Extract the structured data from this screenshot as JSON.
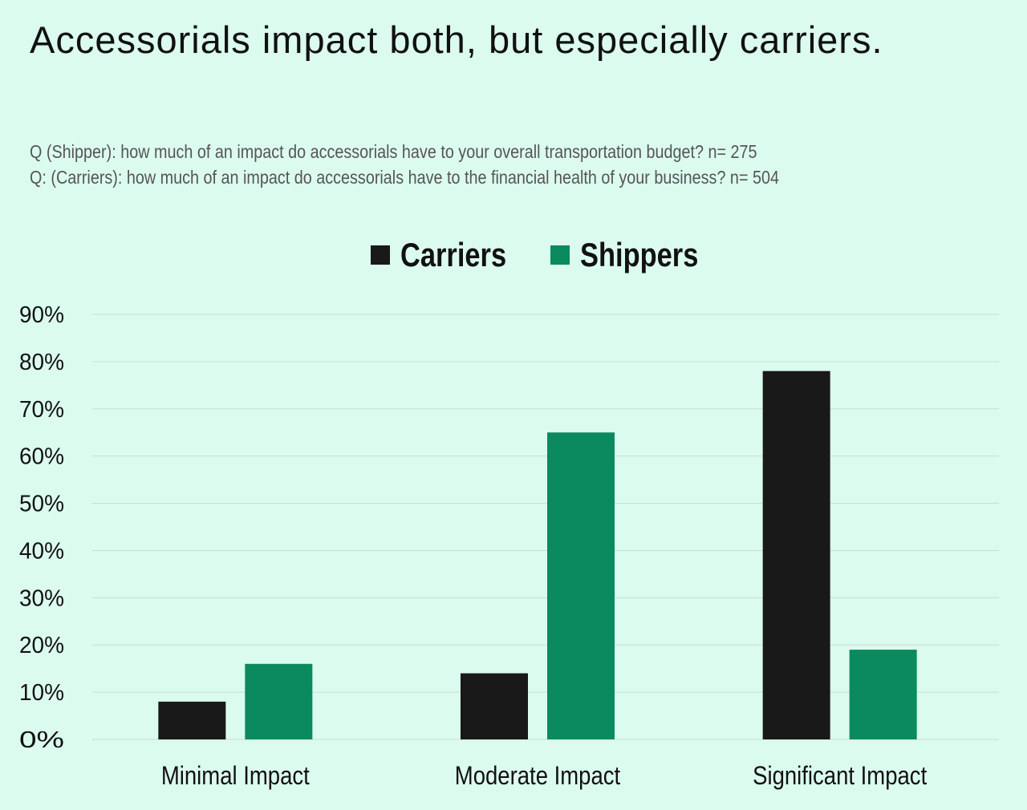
{
  "colors": {
    "background": "#dcfbef",
    "carriers": "#181918",
    "shippers": "#0a8a5e",
    "grid": "#c9dcd4"
  },
  "chart_data": {
    "type": "bar",
    "title": "Accessorials impact both, but especially carriers.",
    "subtitle": [
      "Q (Shipper): how much of an impact do accessorials have to your overall transportation budget? n= 275",
      "Q: (Carriers): how much of an impact do accessorials have to the financial health of your business? n= 504"
    ],
    "categories": [
      "Minimal Impact",
      "Moderate Impact",
      "Significant Impact"
    ],
    "series": [
      {
        "name": "Carriers",
        "values": [
          8,
          14,
          78
        ]
      },
      {
        "name": "Shippers",
        "values": [
          16,
          65,
          19
        ]
      }
    ],
    "ylim": [
      0,
      90
    ],
    "yticks": [
      "0%",
      "10%",
      "20%",
      "30%",
      "40%",
      "50%",
      "60%",
      "70%",
      "80%",
      "90%"
    ],
    "xlabel": "",
    "ylabel": "",
    "grid": true,
    "legend": "top-center"
  }
}
